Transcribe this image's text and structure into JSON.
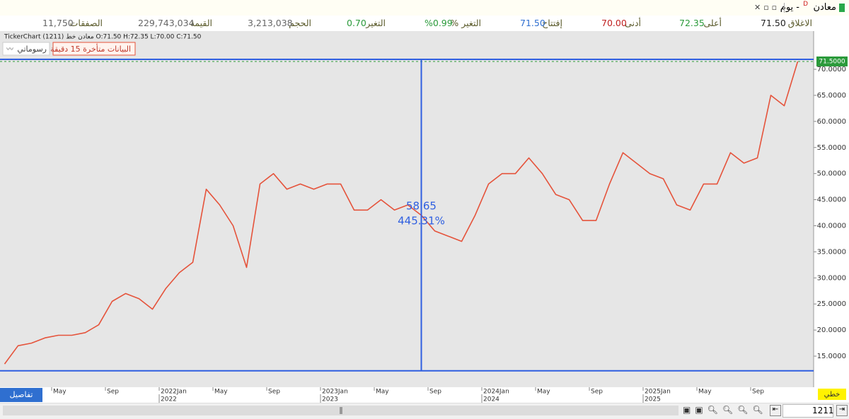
{
  "header": {
    "symbol": "معادن",
    "flag": "D",
    "period": "- يوم"
  },
  "stats": [
    {
      "label": "الاغلاق",
      "value": "71.50"
    },
    {
      "label": "أعلى",
      "value": "72.35"
    },
    {
      "label": "أدنى",
      "value": "70.00"
    },
    {
      "label": "إفتتاح",
      "value": "71.50"
    },
    {
      "label": "التغير %",
      "value": "%0.99"
    },
    {
      "label": "التغير",
      "value": "0.70"
    },
    {
      "label": "الحجم",
      "value": "3,213,038"
    },
    {
      "label": "القيمة",
      "value": "229,743,034"
    },
    {
      "label": "الصفقات",
      "value": "11,750"
    }
  ],
  "info_line": "TickerChart (1211) معادن خط O:71.50 H:72.35 L:70.00 C:71.50",
  "delay_badge": "البيانات متأخرة 15 دقيقة",
  "drawings_button": "رسوماتي",
  "details_button": "تفاصيل",
  "chart_type_button": "خطي",
  "symbol_input": "1211",
  "chart_data": {
    "type": "line",
    "series": [
      {
        "name": "معادن",
        "color": "#e5533b",
        "values": [
          13.5,
          17,
          17.5,
          18.5,
          19,
          19,
          19.5,
          21,
          25.5,
          27,
          26,
          24,
          28,
          31,
          33,
          47,
          44,
          40,
          32,
          48,
          50,
          47,
          48,
          47,
          48,
          48,
          43,
          43,
          45,
          43,
          44,
          42,
          39,
          38,
          37,
          42,
          48,
          50,
          50,
          53,
          50,
          46,
          45,
          41,
          41,
          48,
          54,
          52,
          50,
          49,
          44,
          43,
          48,
          48,
          54,
          52,
          53,
          65,
          63,
          71.5
        ]
      }
    ],
    "x": [
      "2021-01",
      "2021-02",
      "2021-03",
      "2021-04",
      "2021-05",
      "2021-06",
      "2021-07",
      "2021-08",
      "2021-09",
      "2021-10",
      "2021-11",
      "2021-12",
      "2022-01",
      "2022-02",
      "2022-03",
      "2022-04",
      "2022-05",
      "2022-06",
      "2022-07",
      "2022-08",
      "2022-09",
      "2022-10",
      "2022-11",
      "2022-12",
      "2023-01",
      "2023-02",
      "2023-03",
      "2023-04",
      "2023-05",
      "2023-06",
      "2023-07",
      "2023-08",
      "2023-09",
      "2023-10",
      "2023-11",
      "2023-12",
      "2024-01",
      "2024-02",
      "2024-03",
      "2024-04",
      "2024-05",
      "2024-06",
      "2024-07",
      "2024-08",
      "2024-09",
      "2024-10",
      "2024-11",
      "2024-12",
      "2025-01",
      "2025-02",
      "2025-03",
      "2025-04",
      "2025-05",
      "2025-06",
      "2025-07",
      "2025-08",
      "2025-09",
      "2025-10",
      "2025-11",
      "2025-12"
    ],
    "ylim": [
      9.45,
      71.9
    ],
    "yticks": [
      {
        "value": 15,
        "label": "15.0000"
      },
      {
        "value": 20,
        "label": "20.0000"
      },
      {
        "value": 25,
        "label": "25.0000"
      },
      {
        "value": 30,
        "label": "30.0000"
      },
      {
        "value": 35,
        "label": "35.0000"
      },
      {
        "value": 40,
        "label": "40.0000"
      },
      {
        "value": 45,
        "label": "45.0000"
      },
      {
        "value": 50,
        "label": "50.0000"
      },
      {
        "value": 55,
        "label": "55.0000"
      },
      {
        "value": 60,
        "label": "60.0000"
      },
      {
        "value": 65,
        "label": "65.0000"
      },
      {
        "value": 70,
        "label": "70.0000"
      }
    ],
    "xticks": [
      {
        "value": "2021-05",
        "label": "May"
      },
      {
        "value": "2021-09",
        "label": "Sep"
      },
      {
        "value": "2022-01",
        "label": "2022Jan"
      },
      {
        "value": "2022-05",
        "label": "May"
      },
      {
        "value": "2022-09",
        "label": "Sep"
      },
      {
        "value": "2023-01",
        "label": "2023Jan"
      },
      {
        "value": "2023-05",
        "label": "May"
      },
      {
        "value": "2023-09",
        "label": "Sep"
      },
      {
        "value": "2024-01",
        "label": "2024Jan"
      },
      {
        "value": "2024-05",
        "label": "May"
      },
      {
        "value": "2024-09",
        "label": "Sep"
      },
      {
        "value": "2025-01",
        "label": "2025Jan"
      },
      {
        "value": "2025-05",
        "label": "May"
      },
      {
        "value": "2025-09",
        "label": "Sep"
      }
    ],
    "year_labels": [
      {
        "value": "2022-01",
        "label": "2022"
      },
      {
        "value": "2023-01",
        "label": "2023"
      },
      {
        "value": "2024-01",
        "label": "2024"
      },
      {
        "value": "2025-01",
        "label": "2025"
      }
    ],
    "last_price": {
      "value": 71.5,
      "label": "71.5000"
    },
    "measure": {
      "high": 71.9,
      "low": 12.2,
      "x": "2023-08",
      "change_label": "58.65",
      "percent_label": "445.31%",
      "color": "#2f5fe0"
    },
    "grid": false
  }
}
